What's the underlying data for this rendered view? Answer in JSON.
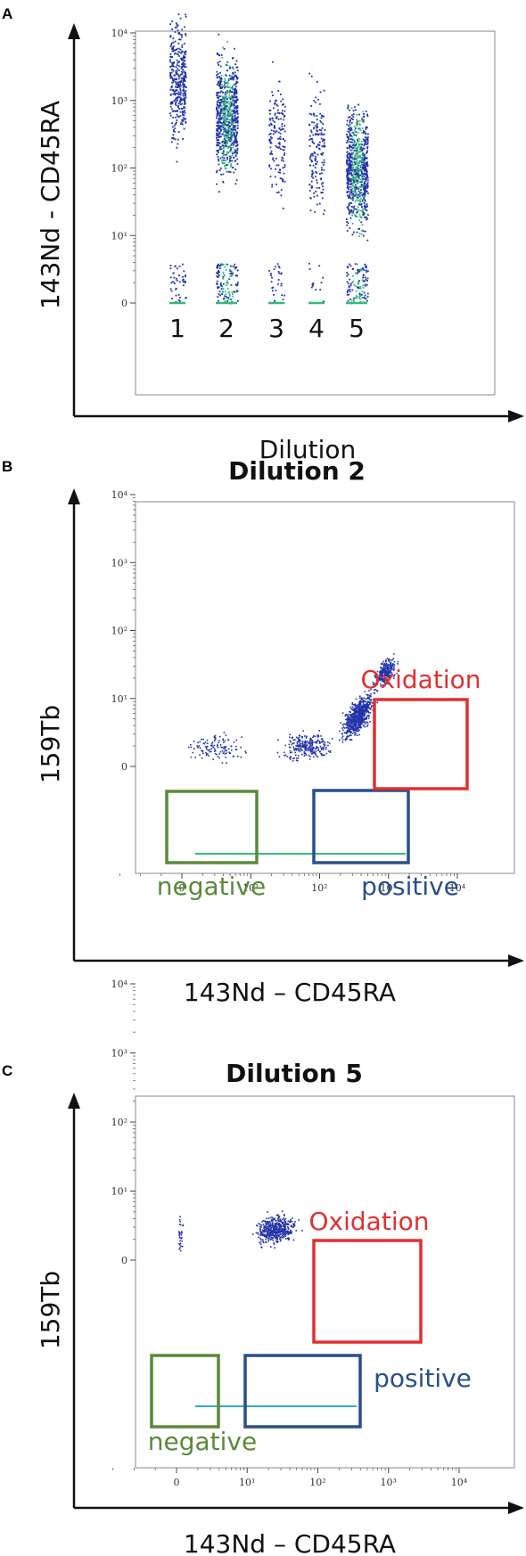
{
  "colors": {
    "dots": "#2233aa",
    "dots_dense": "#33bb77",
    "oxidation": "#e03030",
    "negative": "#5a8a3a",
    "positive": "#2a4f8a"
  },
  "chart_data": [
    {
      "panel": "A",
      "type": "scatter",
      "title": "",
      "xlabel": "Dilution",
      "ylabel": "143Nd - CD45RA",
      "yscale": "biexponential",
      "yticks": [
        "10⁴",
        "10³",
        "10²",
        "10¹",
        "0"
      ],
      "categories": [
        "1",
        "2",
        "3",
        "4",
        "5"
      ],
      "columns": [
        {
          "label": "1",
          "max": 2000,
          "median": 200,
          "density": "medium"
        },
        {
          "label": "2",
          "max": 1500,
          "median": 60,
          "density": "high"
        },
        {
          "label": "3",
          "max": 700,
          "median": 30,
          "density": "low"
        },
        {
          "label": "4",
          "max": 300,
          "median": 20,
          "density": "low"
        },
        {
          "label": "5",
          "max": 100,
          "median": 10,
          "density": "high"
        }
      ]
    },
    {
      "panel": "B",
      "type": "scatter",
      "title": "Dilution 2",
      "xlabel": "143Nd – CD45RA",
      "ylabel": "159Tb",
      "xscale": "biexponential",
      "yscale": "biexponential",
      "xticks": [
        "0",
        "10¹",
        "10²",
        "10³",
        "10⁴"
      ],
      "yticks": [
        "10⁴",
        "10³",
        "10²",
        "10¹",
        "0"
      ],
      "gates": [
        {
          "name": "negative",
          "x": [
            -3,
            5
          ],
          "y": [
            0,
            6
          ]
        },
        {
          "name": "positive",
          "x": [
            30,
            400
          ],
          "y": [
            0,
            6
          ]
        },
        {
          "name": "Oxidation",
          "x": [
            150,
            2500
          ],
          "y": [
            8,
            100
          ]
        }
      ]
    },
    {
      "panel": "C",
      "type": "scatter",
      "title": "Dilution 5",
      "xlabel": "143Nd – CD45RA",
      "ylabel": "159Tb",
      "xscale": "biexponential",
      "yscale": "biexponential",
      "xticks": [
        "0",
        "10¹",
        "10²",
        "10³",
        "10⁴"
      ],
      "yticks": [
        "10⁴",
        "10³",
        "10²",
        "10¹",
        "0"
      ],
      "gates": [
        {
          "name": "negative",
          "x": [
            -3,
            2
          ],
          "y": [
            0,
            6
          ]
        },
        {
          "name": "positive",
          "x": [
            4,
            120
          ],
          "y": [
            0,
            6
          ]
        },
        {
          "name": "Oxidation",
          "x": [
            30,
            700
          ],
          "y": [
            8,
            120
          ]
        }
      ]
    }
  ]
}
